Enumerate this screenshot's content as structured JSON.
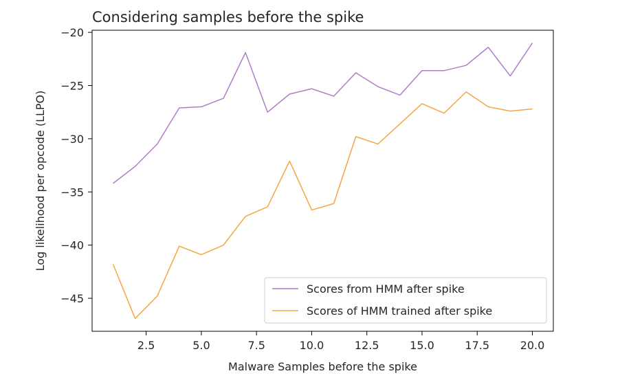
{
  "chart_data": {
    "type": "line",
    "title": "Considering samples before the spike",
    "title_color": "#f5a640",
    "xlabel": "Malware Samples before the spike",
    "ylabel": "Log likelihood per opcode (LLPO)",
    "xlim": [
      0.05,
      20.95
    ],
    "ylim": [
      -48.1,
      -19.8
    ],
    "xticks": [
      2.5,
      5.0,
      7.5,
      10.0,
      12.5,
      15.0,
      17.5,
      20.0
    ],
    "xtick_labels": [
      "2.5",
      "5.0",
      "7.5",
      "10.0",
      "12.5",
      "15.0",
      "17.5",
      "20.0"
    ],
    "yticks": [
      -45,
      -40,
      -35,
      -30,
      -25,
      -20
    ],
    "ytick_labels": [
      "−45",
      "−40",
      "−35",
      "−30",
      "−25",
      "−20"
    ],
    "x": [
      1,
      2,
      3,
      4,
      5,
      6,
      7,
      8,
      9,
      10,
      11,
      12,
      13,
      14,
      15,
      16,
      17,
      18,
      19,
      20
    ],
    "series": [
      {
        "name": "Scores from HMM after spike",
        "color": "#b07cc6",
        "values": [
          -34.2,
          -32.6,
          -30.5,
          -27.1,
          -27.0,
          -26.2,
          -21.9,
          -27.5,
          -25.8,
          -25.3,
          -26.0,
          -23.8,
          -25.1,
          -25.9,
          -23.6,
          -23.6,
          -23.1,
          -21.4,
          -24.1,
          -21.0
        ]
      },
      {
        "name": "Scores of HMM trained after spike",
        "color": "#f5a640",
        "values": [
          -41.8,
          -46.9,
          -44.8,
          -40.1,
          -40.9,
          -40.0,
          -37.3,
          -36.4,
          -32.1,
          -36.7,
          -36.1,
          -29.8,
          -30.5,
          -28.6,
          -26.7,
          -27.6,
          -25.6,
          -27.0,
          -27.4,
          -27.2
        ]
      }
    ],
    "legend_position": "lower-right"
  }
}
